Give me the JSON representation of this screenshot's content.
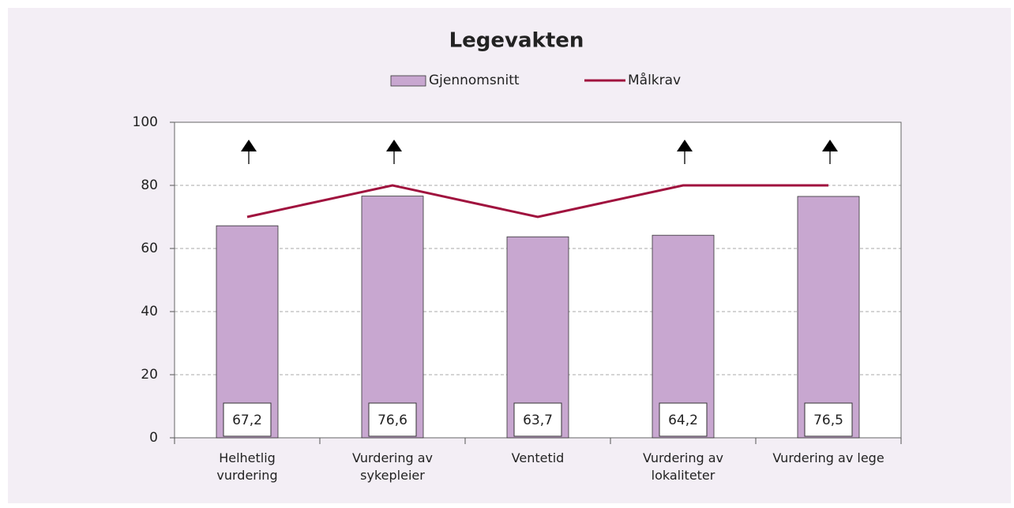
{
  "chart_data": {
    "type": "bar",
    "title": "Legevakten",
    "categories": [
      "Helhetlig\nvurdering",
      "Vurdering av\nsykepleier",
      "Ventetid",
      "Vurdering av\nlokaliteter",
      "Vurdering av lege"
    ],
    "series": [
      {
        "name": "Gjennomsnitt",
        "type": "bar",
        "color": "#c8a7d0",
        "values": [
          67.2,
          76.6,
          63.7,
          64.2,
          76.5
        ],
        "value_labels": [
          "67,2",
          "76,6",
          "63,7",
          "64,2",
          "76,5"
        ]
      },
      {
        "name": "Målkrav",
        "type": "line",
        "color": "#a0123e",
        "values": [
          70,
          80,
          70,
          80,
          80
        ]
      }
    ],
    "ylim": [
      0,
      100
    ],
    "yticks": [
      0,
      20,
      40,
      60,
      80,
      100
    ],
    "grid": true,
    "legend": "top"
  }
}
